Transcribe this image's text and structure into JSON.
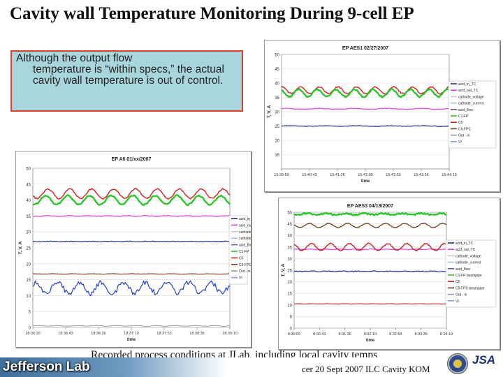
{
  "slide": {
    "title": "Cavity wall Temperature Monitoring During 9-cell EP",
    "callout_line1": "Although the output flow",
    "callout_rest": "temperature is “within specs,” the actual cavity wall temperature is out of control.",
    "caption": "Recorded process conditions at JLab, including local cavity temps",
    "footer_note": "cer 20 Sept 2007 ILC Cavity KOM",
    "logo_text": "Jefferson Lab",
    "jsa_text": "JSA",
    "colors": {
      "callout_bg": "#a9d6dc",
      "callout_border": "#e0402a",
      "footer": "#3f6f9c"
    }
  },
  "chart_data": [
    {
      "id": "aes1",
      "type": "line",
      "title": "EP AES1 02/27/2007",
      "xlabel": "time",
      "ylabel": "T, V, A",
      "ylim": [
        10,
        50
      ],
      "yticks": [
        15,
        20,
        25,
        30,
        35,
        40,
        45,
        50
      ],
      "xticks": [
        "15:39:59",
        "15:40:43",
        "15:41:26",
        "15:42:09",
        "15:42:53",
        "15:43:36",
        "15:44:19"
      ],
      "legend_position": "right",
      "legend": [
        {
          "name": "acid_in_TC",
          "color": "#1f2b8a"
        },
        {
          "name": "acid_out_TC",
          "color": "#e040e0"
        },
        {
          "name": "cathode_voltage",
          "color": "#c8c8c8"
        },
        {
          "name": "cathode_current",
          "color": "#9fc7e8"
        },
        {
          "name": "acid_flow",
          "color": "#6a5a9a"
        },
        {
          "name": "C1-FP",
          "color": "#2dc52d"
        },
        {
          "name": "C5",
          "color": "#d02020"
        },
        {
          "name": "C9-FPC",
          "color": "#7a3a1a"
        },
        {
          "name": "Out - in",
          "color": "#9a9a9a"
        },
        {
          "name": "VI",
          "color": "#8aa0d0"
        }
      ],
      "series": [
        {
          "name": "acid_in_TC",
          "color": "#1f2b8a",
          "base": 25,
          "amp": 0.1,
          "period": 5,
          "noise": 0.1,
          "width": 1.2
        },
        {
          "name": "acid_out_TC",
          "color": "#e040e0",
          "base": 31,
          "amp": 0.15,
          "period": 5,
          "noise": 0.1,
          "width": 1.2
        },
        {
          "name": "C5",
          "color": "#d02020",
          "base": 37.5,
          "amp": 1.2,
          "period": 9,
          "noise": 0.2,
          "width": 1.4
        },
        {
          "name": "C1-FP",
          "color": "#2dc52d",
          "base": 36.5,
          "amp": 1.3,
          "period": 9,
          "noise": 0.25,
          "width": 2.4
        }
      ]
    },
    {
      "id": "a6",
      "type": "line",
      "title": "EP A6 01/xx/2007",
      "xlabel": "time",
      "ylabel": "T, V, A",
      "ylim": [
        0,
        50
      ],
      "yticks": [
        0,
        5,
        10,
        15,
        20,
        25,
        30,
        35,
        40,
        45,
        50
      ],
      "xticks": [
        "18:36:20",
        "18:36:43",
        "18:36:26",
        "18:37:10",
        "18:37:53",
        "18:38:36",
        "18:39:10"
      ],
      "legend_position": "right",
      "legend": [
        {
          "name": "acid_in_TC",
          "color": "#1f2b8a"
        },
        {
          "name": "acid_out_TC",
          "color": "#e040e0"
        },
        {
          "name": "cathode_voltage",
          "color": "#c8c8c8"
        },
        {
          "name": "cathode_current",
          "color": "#9fc7e8"
        },
        {
          "name": "acid_flow",
          "color": "#6a5a9a"
        },
        {
          "name": "C1-FP",
          "color": "#2dc52d"
        },
        {
          "name": "C5",
          "color": "#d02020"
        },
        {
          "name": "C9-FPC",
          "color": "#7a3a1a"
        },
        {
          "name": "Out - in",
          "color": "#9a9a9a"
        },
        {
          "name": "VI",
          "color": "#8aa0d0"
        }
      ],
      "series": [
        {
          "name": "Out - in",
          "color": "#9a9a9a",
          "base": 0.5,
          "amp": 0.1,
          "period": 10,
          "noise": 0.05,
          "width": 1
        },
        {
          "name": "VI",
          "color": "#2040d0",
          "base": 12.5,
          "amp": 1.8,
          "period": 9,
          "noise": 0.8,
          "width": 1.2
        },
        {
          "name": "C9-FPC",
          "color": "#7a3a1a",
          "base": 16.8,
          "amp": 0.05,
          "period": 10,
          "noise": 0.05,
          "width": 1.2
        },
        {
          "name": "acid_in_TC",
          "color": "#1f2b8a",
          "base": 27,
          "amp": 0.05,
          "period": 10,
          "noise": 0.1,
          "width": 1.2
        },
        {
          "name": "acid_out_TC",
          "color": "#e040e0",
          "base": 35,
          "amp": 0.1,
          "period": 10,
          "noise": 0.1,
          "width": 1.2
        },
        {
          "name": "C5",
          "color": "#d02020",
          "base": 42,
          "amp": 1.5,
          "period": 9,
          "noise": 0.2,
          "width": 1.4
        },
        {
          "name": "C1-FP",
          "color": "#2dc52d",
          "base": 40,
          "amp": 1.4,
          "period": 9,
          "noise": 0.25,
          "width": 2.4
        }
      ]
    },
    {
      "id": "aes3",
      "type": "line",
      "title": "EP AES3 04/13/2007",
      "xlabel": "time",
      "ylabel": "T, V, A",
      "ylim": [
        0,
        50
      ],
      "yticks": [
        0,
        5,
        10,
        15,
        20,
        25,
        30,
        35,
        40,
        45,
        50
      ],
      "xticks": [
        "8:30:00",
        "8:30:43",
        "8:31:26",
        "8:32:10",
        "8:32:53",
        "8:33:36",
        "8:34:19"
      ],
      "legend_position": "right",
      "legend": [
        {
          "name": "acid_in_TC",
          "color": "#1f2b8a"
        },
        {
          "name": "acid_out_TC",
          "color": "#e040e0"
        },
        {
          "name": "cathode_voltage",
          "color": "#c8c8c8"
        },
        {
          "name": "cathode_current",
          "color": "#9fc7e8"
        },
        {
          "name": "acid_flow",
          "color": "#6a5a9a"
        },
        {
          "name": "C1-FP beampipe",
          "color": "#2dc52d"
        },
        {
          "name": "C5",
          "color": "#d02020"
        },
        {
          "name": "C9-FPC beampipe",
          "color": "#7a3a1a"
        },
        {
          "name": "Out - in",
          "color": "#9a9a9a"
        },
        {
          "name": "VI",
          "color": "#8aa0d0"
        }
      ],
      "series": [
        {
          "name": "Out - in",
          "color": "#c03030",
          "base": 10.5,
          "amp": 0.05,
          "period": 10,
          "noise": 0.05,
          "width": 1.1
        },
        {
          "name": "acid_in_TC",
          "color": "#1f2b8a",
          "base": 24.5,
          "amp": 0.1,
          "period": 10,
          "noise": 0.15,
          "width": 1.2
        },
        {
          "name": "acid_out_TC",
          "color": "#e040e0",
          "base": 34,
          "amp": 0.1,
          "period": 10,
          "noise": 0.1,
          "width": 1.2
        },
        {
          "name": "C5",
          "color": "#d02020",
          "base": 35,
          "amp": 1.5,
          "period": 8,
          "noise": 0.25,
          "width": 1.4
        },
        {
          "name": "C9-FPC beampipe",
          "color": "#7a3a1a",
          "base": 44.3,
          "amp": 0.9,
          "period": 8,
          "noise": 0.15,
          "width": 1.3
        },
        {
          "name": "C1-FP beampipe",
          "color": "#2dc52d",
          "base": 49.2,
          "amp": 0.3,
          "period": 8,
          "noise": 0.3,
          "width": 2.4
        }
      ]
    }
  ]
}
